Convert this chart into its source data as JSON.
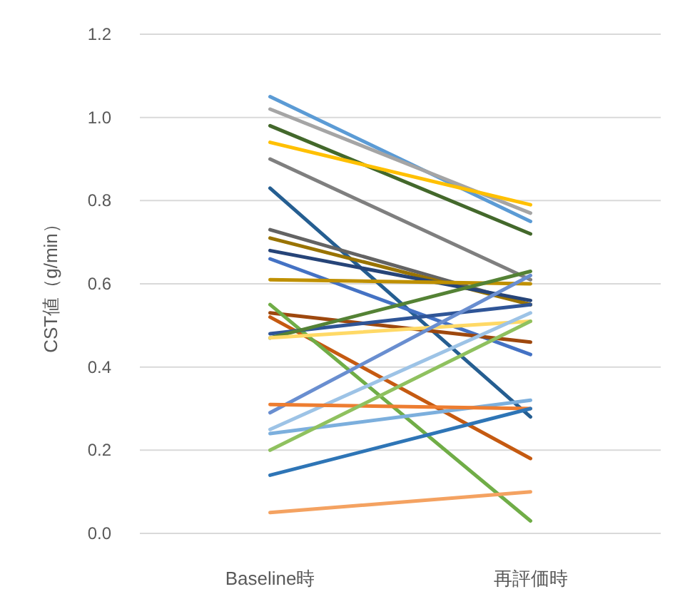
{
  "chart_data": {
    "type": "line",
    "ylabel": "CST値（g/min）",
    "categories": [
      "Baseline時",
      "再評価時"
    ],
    "ylim": [
      0,
      1.2
    ],
    "yticks": [
      {
        "value": 0,
        "label": "0.0"
      },
      {
        "value": 0.2,
        "label": "0.2"
      },
      {
        "value": 0.4,
        "label": "0.4"
      },
      {
        "value": 0.6,
        "label": "0.6"
      },
      {
        "value": 0.8,
        "label": "0.8"
      },
      {
        "value": 1.0,
        "label": "1.0"
      },
      {
        "value": 1.2,
        "label": "1.2"
      }
    ],
    "grid": "y",
    "marker": "none",
    "line_style": "solid",
    "series": [
      {
        "color": "#5b9bd5",
        "values": [
          1.05,
          0.75
        ]
      },
      {
        "color": "#a5a5a5",
        "values": [
          1.02,
          0.77
        ]
      },
      {
        "color": "#43682b",
        "values": [
          0.98,
          0.72
        ]
      },
      {
        "color": "#ffc000",
        "values": [
          0.94,
          0.79
        ]
      },
      {
        "color": "#7f7f7f",
        "values": [
          0.9,
          0.61
        ]
      },
      {
        "color": "#255e91",
        "values": [
          0.83,
          0.28
        ]
      },
      {
        "color": "#636363",
        "values": [
          0.73,
          0.55
        ]
      },
      {
        "color": "#997300",
        "values": [
          0.71,
          0.55
        ]
      },
      {
        "color": "#264478",
        "values": [
          0.68,
          0.56
        ]
      },
      {
        "color": "#4472c4",
        "values": [
          0.66,
          0.43
        ]
      },
      {
        "color": "#bf9000",
        "values": [
          0.61,
          0.6
        ]
      },
      {
        "color": "#9e480e",
        "values": [
          0.53,
          0.46
        ]
      },
      {
        "color": "#c55a11",
        "values": [
          0.52,
          0.18
        ]
      },
      {
        "color": "#70ad47",
        "values": [
          0.55,
          0.03
        ]
      },
      {
        "color": "#2f5597",
        "values": [
          0.48,
          0.55
        ]
      },
      {
        "color": "#548235",
        "values": [
          0.47,
          0.63
        ]
      },
      {
        "color": "#ffd966",
        "values": [
          0.47,
          0.51
        ]
      },
      {
        "color": "#698ed0",
        "values": [
          0.29,
          0.62
        ]
      },
      {
        "color": "#9dc3e6",
        "values": [
          0.25,
          0.53
        ]
      },
      {
        "color": "#7cafdd",
        "values": [
          0.24,
          0.32
        ]
      },
      {
        "color": "#ed7d31",
        "values": [
          0.31,
          0.3
        ]
      },
      {
        "color": "#8fc15f",
        "values": [
          0.2,
          0.51
        ]
      },
      {
        "color": "#2e75b6",
        "values": [
          0.14,
          0.3
        ]
      },
      {
        "color": "#f4a261",
        "values": [
          0.05,
          0.1
        ]
      }
    ]
  }
}
